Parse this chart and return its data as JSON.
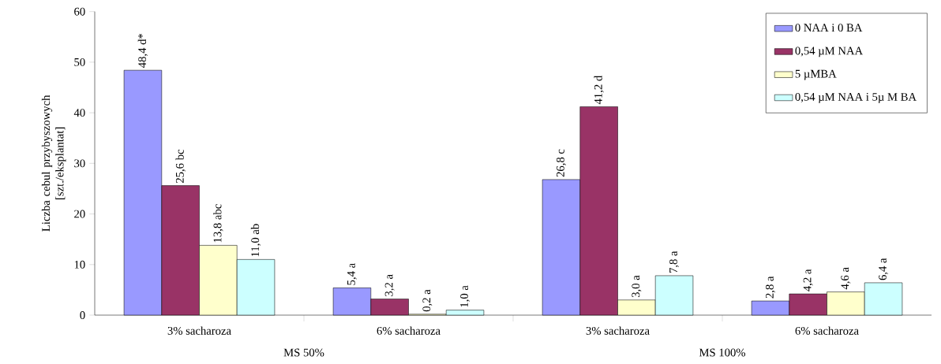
{
  "chart_data": {
    "type": "bar",
    "ylabel": "Liczba cebul przybyszowych [szt./eksplantat]",
    "categories": [
      "3% sacharoza",
      "6% sacharoza",
      "3% sacharoza",
      "6% sacharoza"
    ],
    "series": [
      {
        "name": "0 NAA i 0 BA",
        "color": "#9999ff",
        "values": [
          48.4,
          5.4,
          26.8,
          2.8
        ],
        "value_labels": [
          "48,4 d*",
          "5,4 a",
          "26,8 c",
          "2,8 a"
        ]
      },
      {
        "name": "0,54 µM NAA",
        "color": "#993366",
        "values": [
          25.6,
          3.2,
          41.2,
          4.2
        ],
        "value_labels": [
          "25,6 bc",
          "3,2 a",
          "41,2 d",
          "4,2 a"
        ]
      },
      {
        "name": "5 µMBA",
        "color": "#ffffcc",
        "values": [
          13.8,
          0.2,
          3.0,
          4.6
        ],
        "value_labels": [
          "13,8 abc",
          "0,2 a",
          "3,0 a",
          "4,6 a"
        ]
      },
      {
        "name": "0,54 µM NAA i 5µ M BA",
        "color": "#ccffff",
        "values": [
          11.0,
          1.0,
          7.8,
          6.4
        ],
        "value_labels": [
          "11,0 ab",
          "1,0 a",
          "7,8 a",
          "6,4 a"
        ]
      }
    ],
    "ylim": [
      0,
      60
    ],
    "yticks": [
      0,
      10,
      20,
      30,
      40,
      50,
      60
    ],
    "grid": false,
    "legend": "top right",
    "annotations": [
      "MS 50%",
      "MS 100%"
    ]
  }
}
